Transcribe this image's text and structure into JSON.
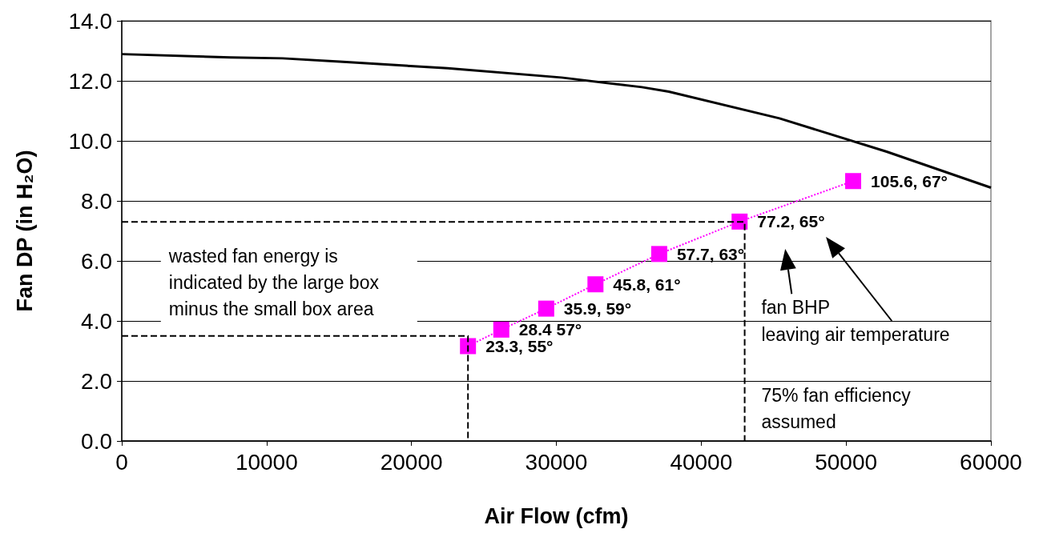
{
  "chart_data": {
    "type": "line",
    "xlabel": "Air Flow (cfm)",
    "ylabel": "Fan DP (in H₂O)",
    "xlim": [
      0,
      60000
    ],
    "xticks": [
      0,
      10000,
      20000,
      30000,
      40000,
      50000,
      60000
    ],
    "ylim": [
      0,
      14
    ],
    "yticks": [
      {
        "value": 0,
        "label": "0.0"
      },
      {
        "value": 2,
        "label": "2.0"
      },
      {
        "value": 4,
        "label": "4.0"
      },
      {
        "value": 6,
        "label": "6.0"
      },
      {
        "value": 8,
        "label": "8.0"
      },
      {
        "value": 10,
        "label": "10.0"
      },
      {
        "value": 12,
        "label": "12.0"
      },
      {
        "value": 14,
        "label": "14.0"
      }
    ],
    "grid": "y",
    "series": [
      {
        "color": "#000000",
        "marker": "none",
        "line_style": "solid",
        "x": [
          0,
          7500,
          11100,
          15050,
          22500,
          30350,
          35900,
          37760,
          45400,
          52800,
          60000
        ],
        "values": [
          12.89,
          12.78,
          12.75,
          12.64,
          12.42,
          12.11,
          11.79,
          11.64,
          10.75,
          9.64,
          8.44
        ]
      },
      {
        "color": "#ff00ff",
        "marker": "square",
        "line_style": "dotted",
        "x": [
          23900,
          26200,
          29300,
          32700,
          37100,
          42650,
          50490
        ],
        "values": [
          3.16,
          3.71,
          4.41,
          5.22,
          6.23,
          7.31,
          8.66
        ]
      },
      {
        "color": "#000000",
        "marker": "none",
        "line_style": "dashed",
        "x": [
          0,
          43000,
          43000
        ],
        "values": [
          7.3,
          7.3,
          0
        ]
      },
      {
        "color": "#000000",
        "marker": "none",
        "line_style": "dashed",
        "x": [
          0,
          23900,
          23900
        ],
        "values": [
          3.5,
          3.5,
          0
        ]
      }
    ],
    "annotations": [
      "wasted fan energy is indicated by the large box minus the small box area",
      "fan BHP",
      "leaving air temperature",
      "75% fan efficiency assumed",
      {
        "text": "23.3, 55°",
        "x": 23900,
        "y": 3.16
      },
      {
        "text": "28.4 57°",
        "x": 26200,
        "y": 3.71
      },
      {
        "text": "35.9, 59°",
        "x": 29300,
        "y": 4.41
      },
      {
        "text": "45.8, 61°",
        "x": 32700,
        "y": 5.22
      },
      {
        "text": "57.7, 63°",
        "x": 37100,
        "y": 6.23
      },
      {
        "text": "77.2, 65°",
        "x": 42650,
        "y": 7.31
      },
      {
        "text": "105.6, 67°",
        "x": 50490,
        "y": 8.66
      }
    ]
  }
}
